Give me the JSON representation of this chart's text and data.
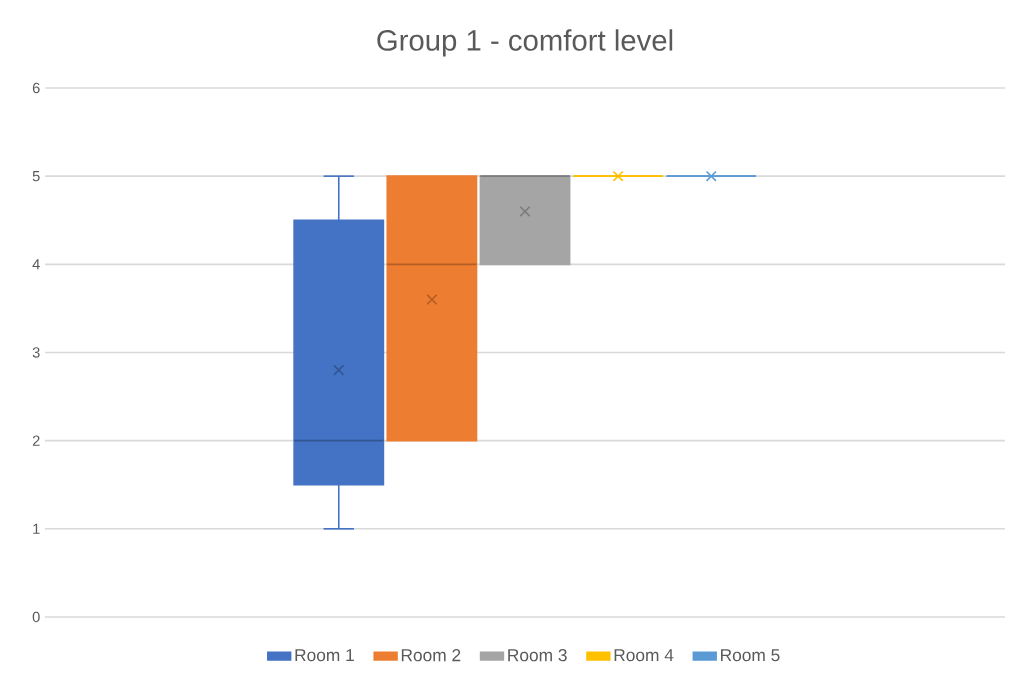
{
  "chart_data": {
    "type": "box",
    "title": "Group 1 - comfort level",
    "categories": [
      null
    ],
    "ylim": [
      0,
      6
    ],
    "yticks": [
      0,
      1,
      2,
      3,
      4,
      5,
      6
    ],
    "grid": "y",
    "legend": "bottom",
    "marker": "cross",
    "series": [
      {
        "name": "Room 1",
        "color": "#4472c4",
        "boxes": [
          {
            "low": 1,
            "q1": 1.5,
            "median": 2,
            "q3": 4.5,
            "high": 5,
            "mean": 2.8
          }
        ]
      },
      {
        "name": "Room 2",
        "color": "#ed7d31",
        "boxes": [
          {
            "low": 2,
            "q1": 2,
            "median": 4,
            "q3": 5,
            "high": 5,
            "mean": 3.6
          }
        ]
      },
      {
        "name": "Room 3",
        "color": "#a5a5a5",
        "boxes": [
          {
            "low": 4,
            "q1": 4,
            "median": 5,
            "q3": 5,
            "high": 5,
            "mean": 4.6
          }
        ]
      },
      {
        "name": "Room 4",
        "color": "#ffc000",
        "boxes": [
          {
            "low": 5,
            "q1": 5,
            "median": 5,
            "q3": 5,
            "high": 5,
            "mean": 5
          }
        ]
      },
      {
        "name": "Room 5",
        "color": "#5b9bd5",
        "boxes": [
          {
            "low": 5,
            "q1": 5,
            "median": 5,
            "q3": 5,
            "high": 5,
            "mean": 5
          }
        ]
      }
    ]
  }
}
